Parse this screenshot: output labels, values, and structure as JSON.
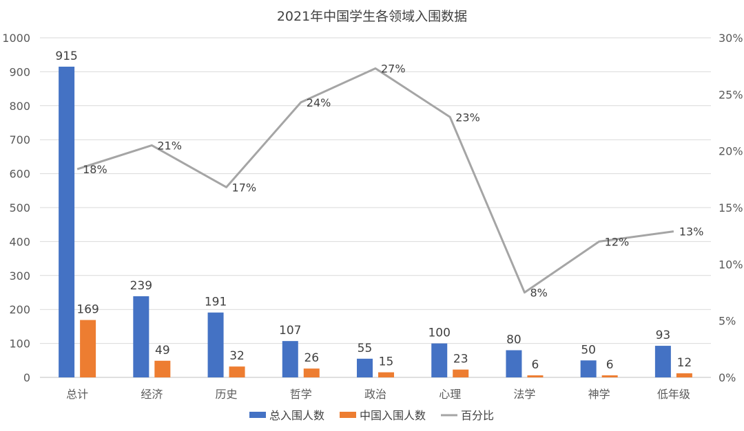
{
  "chart_data": {
    "type": "bar",
    "title": "2021年中国学生各领域入围数据",
    "categories": [
      "总计",
      "经济",
      "历史",
      "哲学",
      "政治",
      "心理",
      "法学",
      "神学",
      "低年级"
    ],
    "series": [
      {
        "name": "总入围人数",
        "type": "bar",
        "axis": "left",
        "color": "#4472C4",
        "values": [
          915,
          239,
          191,
          107,
          55,
          100,
          80,
          50,
          93
        ],
        "labels": [
          "915",
          "239",
          "191",
          "107",
          "55",
          "100",
          "80",
          "50",
          "93"
        ]
      },
      {
        "name": "中国入围人数",
        "type": "bar",
        "axis": "left",
        "color": "#ED7D31",
        "values": [
          169,
          49,
          32,
          26,
          15,
          23,
          6,
          6,
          12
        ],
        "labels": [
          "169",
          "49",
          "32",
          "26",
          "15",
          "23",
          "6",
          "6",
          "12"
        ]
      },
      {
        "name": "百分比",
        "type": "line",
        "axis": "right",
        "color": "#A5A5A5",
        "values": [
          18.4,
          20.5,
          16.8,
          24.3,
          27.3,
          23.0,
          7.5,
          12.0,
          12.9
        ],
        "labels": [
          "18%",
          "21%",
          "17%",
          "24%",
          "27%",
          "23%",
          "8%",
          "12%",
          "13%"
        ]
      }
    ],
    "ylim": [
      0,
      1000
    ],
    "yticks": [
      "0",
      "100",
      "200",
      "300",
      "400",
      "500",
      "600",
      "700",
      "800",
      "900",
      "1000"
    ],
    "y2lim": [
      0,
      30
    ],
    "y2ticks": [
      "0%",
      "5%",
      "10%",
      "15%",
      "20%",
      "25%",
      "30%"
    ],
    "grid": true,
    "legend_position": "bottom"
  }
}
